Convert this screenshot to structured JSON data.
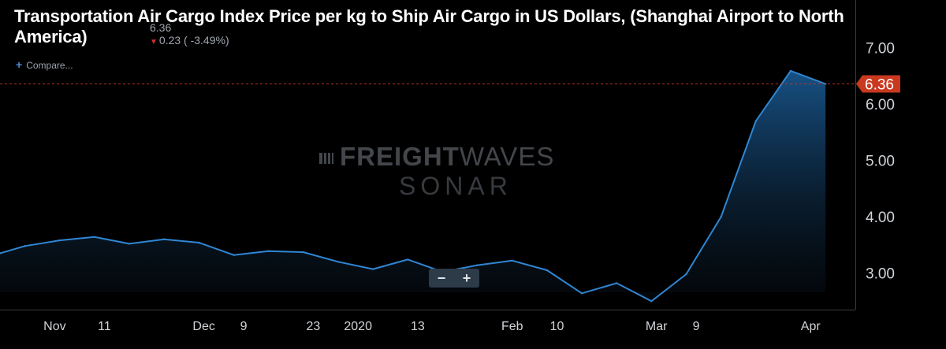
{
  "header": {
    "title": "Transportation Air Cargo Index Price per kg to Ship Air Cargo in US Dollars, (Shanghai Airport to North America)",
    "last_value": "6.36",
    "change": "0.23 ( -3.49%)"
  },
  "compare_label": "Compare...",
  "watermark": {
    "brand_bold": "FREIGHT",
    "brand_light": "WAVES",
    "product": "SONAR"
  },
  "zoom": {
    "minus": "−",
    "plus": "+"
  },
  "colors": {
    "line": "#2f86d3",
    "price_marker": "#c8391f",
    "background": "#000000",
    "axis_text": "#d0d4d8"
  },
  "chart_data": {
    "type": "area",
    "title": "Transportation Air Cargo Index Price per kg to Ship Air Cargo in US Dollars, (Shanghai Airport to North America)",
    "x": [
      "2019-10-21",
      "2019-10-26",
      "2019-11-02",
      "2019-11-09",
      "2019-11-16",
      "2019-11-23",
      "2019-11-30",
      "2019-12-07",
      "2019-12-14",
      "2019-12-21",
      "2019-12-28",
      "2020-01-04",
      "2020-01-11",
      "2020-01-18",
      "2020-01-25",
      "2020-02-01",
      "2020-02-08",
      "2020-02-15",
      "2020-02-22",
      "2020-02-29",
      "2020-03-07",
      "2020-03-14",
      "2020-03-21",
      "2020-03-28",
      "2020-04-04"
    ],
    "series": [
      {
        "values": [
          3.35,
          3.48,
          3.58,
          3.64,
          3.52,
          3.6,
          3.54,
          3.32,
          3.39,
          3.37,
          3.2,
          3.07,
          3.24,
          3.02,
          3.14,
          3.22,
          3.05,
          2.64,
          2.82,
          2.5,
          2.98,
          4.0,
          5.7,
          6.59,
          6.36
        ]
      }
    ],
    "x_tick_labels": [
      "Nov",
      "11",
      "Dec",
      "9",
      "23",
      "2020",
      "13",
      "Feb",
      "10",
      "Mar",
      "9",
      "Apr"
    ],
    "x_ticks": [
      "2019-11-01",
      "2019-11-11",
      "2019-12-01",
      "2019-12-09",
      "2019-12-23",
      "2020-01-01",
      "2020-01-13",
      "2020-02-01",
      "2020-02-10",
      "2020-03-01",
      "2020-03-09",
      "2020-04-01"
    ],
    "y_ticks": [
      3.0,
      4.0,
      5.0,
      6.0,
      7.0
    ],
    "y_tick_labels": [
      "3.00",
      "4.00",
      "5.00",
      "6.00",
      "7.00"
    ],
    "ylim": [
      2.35,
      7.85
    ],
    "xlim": [
      "2019-10-21",
      "2020-04-10"
    ],
    "last_price": 6.36,
    "last_price_label": "6.36",
    "grid": false,
    "y_axis_position": "right"
  }
}
